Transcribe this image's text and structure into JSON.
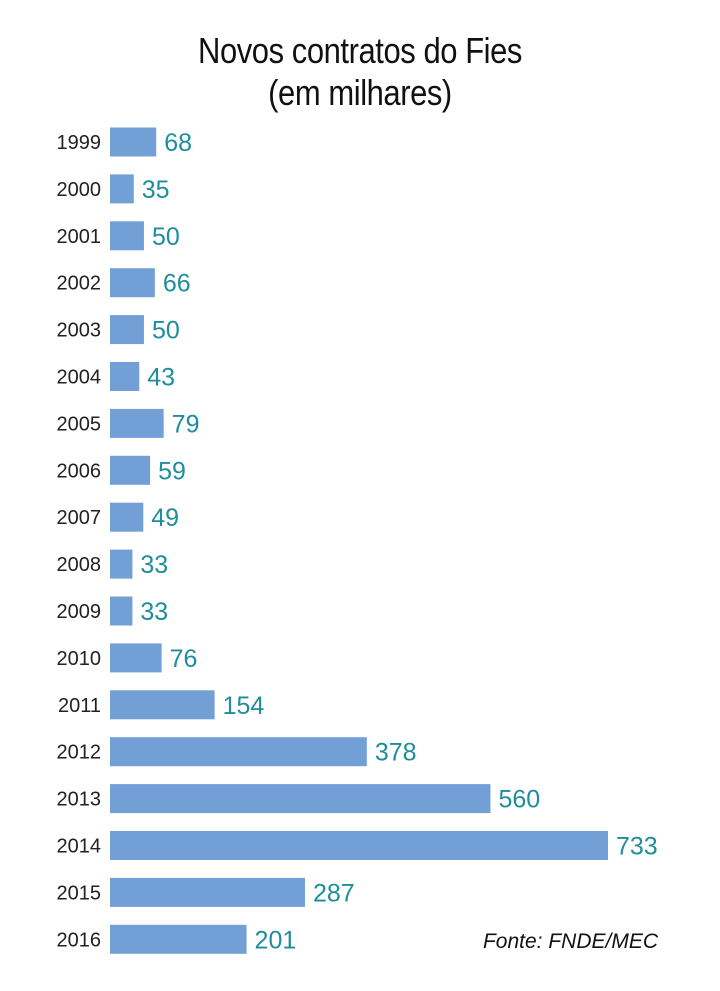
{
  "chart_data": {
    "type": "bar",
    "orientation": "horizontal",
    "title": "Novos contratos do Fies",
    "subtitle": "(em milhares)",
    "categories": [
      "1999",
      "2000",
      "2001",
      "2002",
      "2003",
      "2004",
      "2005",
      "2006",
      "2007",
      "2008",
      "2009",
      "2010",
      "2011",
      "2012",
      "2013",
      "2014",
      "2015",
      "2016"
    ],
    "values": [
      68,
      35,
      50,
      66,
      50,
      43,
      79,
      59,
      49,
      33,
      33,
      76,
      154,
      378,
      560,
      733,
      287,
      201
    ],
    "data_labels": [
      "68",
      "35",
      "50",
      "66",
      "50",
      "43",
      "79",
      "59",
      "49",
      "33",
      "33",
      "76",
      "154",
      "378",
      "560",
      "733",
      "287",
      "201"
    ],
    "xlim": [
      0,
      733
    ],
    "grid": false,
    "legend": "none",
    "source": "Fonte: FNDE/MEC"
  },
  "colors": {
    "bar": "#729FD6",
    "value_label": "#1E8D9C",
    "year_label": "#222222",
    "title": "#111111"
  }
}
